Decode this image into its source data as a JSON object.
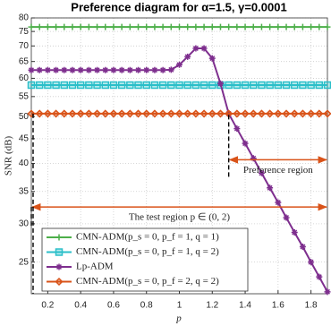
{
  "chart_data": {
    "type": "line",
    "title": "Preference diagram for α=1.5, γ=0.0001",
    "x_label": "p",
    "y_label": "SNR (dB)",
    "xlim": [
      0.1,
      1.9
    ],
    "xticks": [
      0.2,
      0.4,
      0.6,
      0.8,
      1,
      1.2,
      1.4,
      1.6,
      1.8
    ],
    "ylim": [
      21.5,
      80
    ],
    "yticks": [
      25,
      30,
      35,
      40,
      45,
      50,
      55,
      60,
      65,
      70,
      75,
      80
    ],
    "y_scale": "log",
    "grid": true,
    "legend": "lower left",
    "x": [
      0.1,
      0.15,
      0.2,
      0.25,
      0.3,
      0.35,
      0.4,
      0.45,
      0.5,
      0.55,
      0.6,
      0.65,
      0.7,
      0.75,
      0.8,
      0.85,
      0.9,
      0.95,
      1.0,
      1.05,
      1.1,
      1.15,
      1.2,
      1.25,
      1.3,
      1.35,
      1.4,
      1.45,
      1.5,
      1.55,
      1.6,
      1.65,
      1.7,
      1.75,
      1.8,
      1.85,
      1.9
    ],
    "series": [
      {
        "name": "CMN-ADM(p_s = 0, p_f = 1, q = 1)",
        "color": "#4daf4a",
        "marker": "plus",
        "values": [
          76.6,
          76.6,
          76.6,
          76.6,
          76.6,
          76.6,
          76.6,
          76.6,
          76.6,
          76.6,
          76.6,
          76.6,
          76.6,
          76.6,
          76.6,
          76.6,
          76.6,
          76.6,
          76.6,
          76.6,
          76.6,
          76.6,
          76.6,
          76.6,
          76.6,
          76.6,
          76.6,
          76.6,
          76.6,
          76.6,
          76.6,
          76.6,
          76.6,
          76.6,
          76.6,
          76.6,
          76.6
        ]
      },
      {
        "name": "CMN-ADM(p_s = 0, p_f = 1, q = 2)",
        "color": "#2bbfc9",
        "marker": "square",
        "values": [
          58.1,
          58.1,
          58.1,
          58.1,
          58.1,
          58.1,
          58.1,
          58.1,
          58.1,
          58.1,
          58.1,
          58.1,
          58.1,
          58.1,
          58.1,
          58.1,
          58.1,
          58.1,
          58.1,
          58.1,
          58.1,
          58.1,
          58.1,
          58.1,
          58.1,
          58.1,
          58.1,
          58.1,
          58.1,
          58.1,
          58.1,
          58.1,
          58.1,
          58.1,
          58.1,
          58.1,
          58.1
        ]
      },
      {
        "name": "Lp-ADM",
        "color": "#7e2f8e",
        "marker": "asterisk",
        "values": [
          62.4,
          62.4,
          62.4,
          62.4,
          62.4,
          62.4,
          62.4,
          62.4,
          62.4,
          62.4,
          62.4,
          62.4,
          62.4,
          62.4,
          62.4,
          62.4,
          62.4,
          62.5,
          64,
          66.5,
          69.2,
          69.2,
          66,
          58.5,
          50.7,
          47.2,
          44.0,
          41.0,
          38.2,
          35.6,
          33.2,
          30.9,
          28.8,
          26.9,
          25.0,
          23.3,
          21.7
        ]
      },
      {
        "name": "CMN-ADM(p_s = 0, p_f = 2, q = 2)",
        "color": "#d95319",
        "marker": "diamond",
        "values": [
          50.7,
          50.7,
          50.7,
          50.7,
          50.7,
          50.7,
          50.7,
          50.7,
          50.7,
          50.7,
          50.7,
          50.7,
          50.7,
          50.7,
          50.7,
          50.7,
          50.7,
          50.7,
          50.7,
          50.7,
          50.7,
          50.7,
          50.7,
          50.7,
          50.7,
          50.7,
          50.7,
          50.7,
          50.7,
          50.7,
          50.7,
          50.7,
          50.7,
          50.7,
          50.7,
          50.7,
          50.7
        ]
      }
    ],
    "annotations": [
      {
        "text": "Preference region",
        "x": [
          1.3,
          1.9
        ],
        "y": 40.7
      },
      {
        "text": "The test region p ∈ (0, 2)",
        "x": [
          0.1,
          1.9
        ],
        "y": 32.5
      }
    ]
  }
}
